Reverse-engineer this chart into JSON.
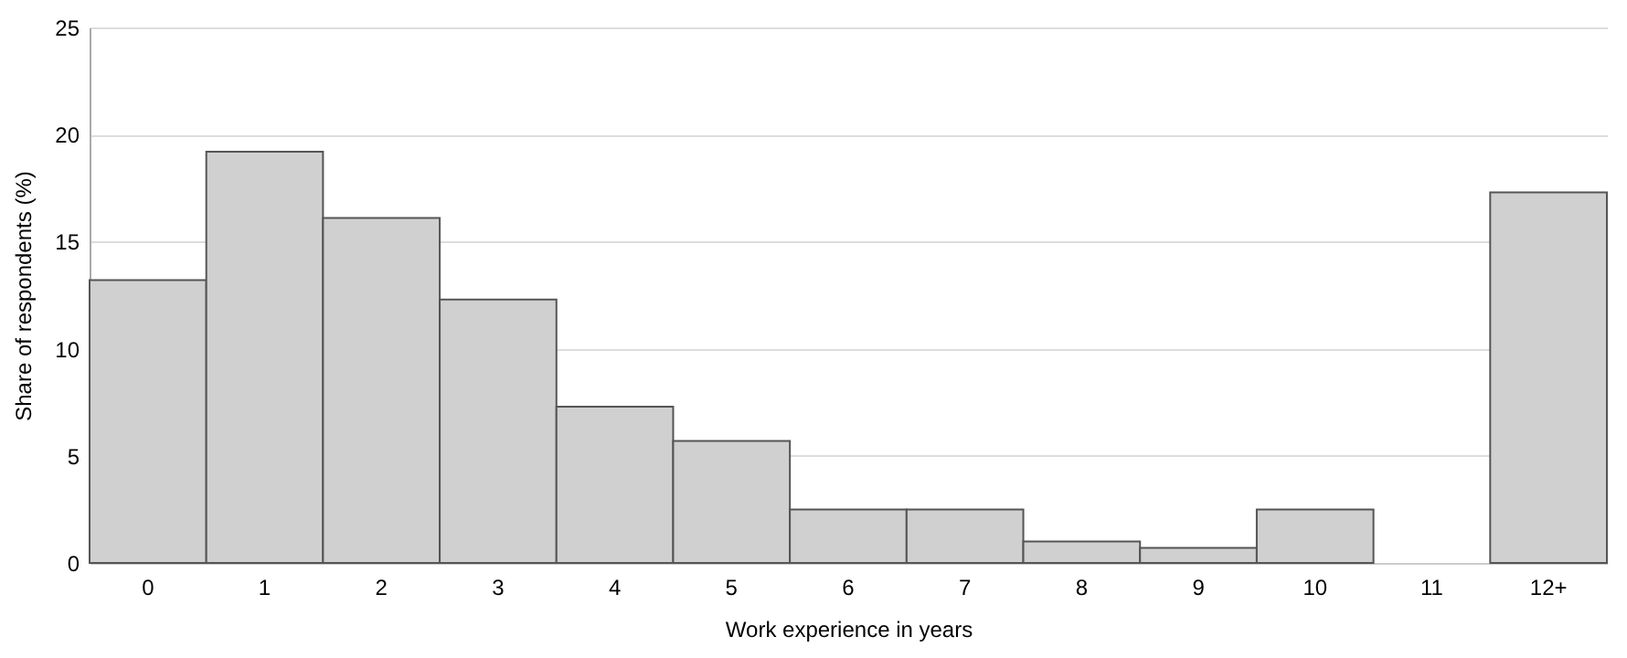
{
  "chart_data": {
    "type": "bar",
    "xlabel": "Work experience in years",
    "ylabel": "Share of  respondents (%)",
    "categories": [
      "0",
      "1",
      "2",
      "3",
      "4",
      "5",
      "6",
      "7",
      "8",
      "9",
      "10",
      "11",
      "12+"
    ],
    "values": [
      13.2,
      19.2,
      16.1,
      12.3,
      7.3,
      5.7,
      2.5,
      2.5,
      1.0,
      0.7,
      2.5,
      0,
      17.3
    ],
    "color": "#d0d0d0",
    "ylim": [
      0,
      25
    ],
    "yticks": [
      0,
      5,
      10,
      15,
      20,
      25
    ],
    "grid": "y"
  }
}
